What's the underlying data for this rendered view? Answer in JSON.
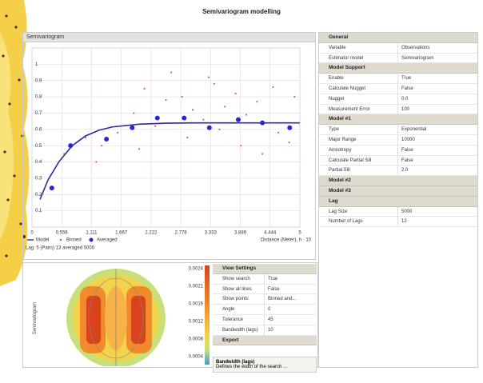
{
  "title": "Semivariogram modelling",
  "chart_data": {
    "type": "scatter",
    "title": "Semivariogram",
    "x_label": "Distance (Meter), h · 10",
    "status": "Lag: 5 (Pairs) 13 averaged 5000",
    "xlim": [
      0,
      5
    ],
    "xticks": [
      0,
      0.556,
      1.111,
      1.667,
      2.222,
      2.778,
      3.333,
      3.889,
      4.444,
      5
    ],
    "ylim": [
      0,
      1.1
    ],
    "yticks": [
      0.1,
      0.2,
      0.3,
      0.4,
      0.5,
      0.6,
      0.7,
      0.8,
      0.9,
      1.0
    ],
    "grid": true,
    "series": [
      {
        "name": "Model",
        "color": "#2a2a9c",
        "kind": "line",
        "x": [
          0.15,
          0.3,
          0.5,
          0.75,
          1,
          1.25,
          1.5,
          2,
          2.5,
          3,
          4,
          5
        ],
        "values": [
          0.17,
          0.29,
          0.4,
          0.5,
          0.56,
          0.595,
          0.615,
          0.632,
          0.638,
          0.64,
          0.64,
          0.64
        ]
      },
      {
        "name": "Binned",
        "color": "#e05a5a",
        "kind": "point",
        "x": [
          0.6,
          1.0,
          1.3,
          1.6,
          1.9,
          2.1,
          2.3,
          2.5,
          2.6,
          2.8,
          2.9,
          3.0,
          3.2,
          3.4,
          3.5,
          3.6,
          3.8,
          3.9,
          4.0,
          4.2,
          4.3,
          4.5,
          4.6,
          4.8,
          4.9,
          1.2,
          2.0,
          3.3
        ],
        "values": [
          0.45,
          0.55,
          0.5,
          0.58,
          0.7,
          0.85,
          0.62,
          0.78,
          0.95,
          0.8,
          0.55,
          0.72,
          0.66,
          0.88,
          0.6,
          0.74,
          0.82,
          0.5,
          0.69,
          0.77,
          0.45,
          0.86,
          0.58,
          0.52,
          0.8,
          0.4,
          0.48,
          0.92
        ]
      },
      {
        "name": "Averaged",
        "color": "#2626d8",
        "kind": "big-point",
        "x": [
          0.37,
          0.72,
          1.39,
          1.87,
          2.34,
          2.84,
          3.31,
          3.85,
          4.3,
          4.81
        ],
        "values": [
          0.24,
          0.5,
          0.54,
          0.61,
          0.67,
          0.67,
          0.61,
          0.66,
          0.64,
          0.61
        ]
      }
    ]
  },
  "properties": [
    {
      "name": "General",
      "rows": [
        [
          "Variable",
          "Observations"
        ],
        [
          "Estimator model",
          "Semivariogram"
        ]
      ]
    },
    {
      "name": "Model Support",
      "rows": [
        [
          "Enable",
          "True"
        ],
        [
          "Calculate Nugget",
          "False"
        ],
        [
          "Nugget",
          "0.0"
        ],
        [
          "Measurement Error",
          "100"
        ]
      ]
    },
    {
      "name": "Model #1",
      "rows": [
        [
          "Type",
          "Exponential"
        ],
        [
          "Major Range",
          "10000"
        ],
        [
          "Anisotropy",
          "False"
        ],
        [
          "Calculate Partial Sill",
          "False"
        ],
        [
          "Partial Sill",
          "2.0"
        ]
      ]
    },
    {
      "name": "Model #2"
    },
    {
      "name": "Model #3"
    },
    {
      "name": "Lag",
      "rows": [
        [
          "Lag Size",
          "5000"
        ],
        [
          "Number of Lags",
          "12"
        ]
      ]
    }
  ],
  "surface": {
    "label": "Semivariogram",
    "scale": [
      "0.0024",
      "0.0021",
      "0.0016",
      "0.0012",
      "0.0008",
      "0.0004"
    ]
  },
  "view_settings": [
    {
      "name": "View Settings",
      "rows": [
        [
          "Show search",
          "True"
        ],
        [
          "Show all lines",
          "False"
        ],
        [
          "Show points",
          "Binned and..."
        ],
        [
          "Angle",
          "0"
        ],
        [
          "Tolerance",
          "45"
        ],
        [
          "Bandwidth (lags)",
          "10"
        ]
      ]
    },
    {
      "name": "Export"
    }
  ],
  "help": {
    "title": "Bandwidth (lags)",
    "text": "Defines the width of the search ..."
  }
}
